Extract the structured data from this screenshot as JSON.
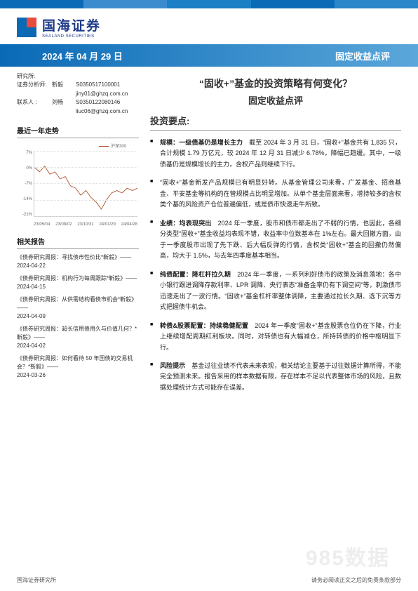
{
  "theme": {
    "brand_blue": "#0a6ab6",
    "brand_blue_dark": "#1e3a8a",
    "header_segments": [
      "#0a6ab6",
      "#3a8ccf",
      "#1a7fc4",
      "#0a6ab6",
      "#2a85c9"
    ],
    "band_gradient_from": "#0a6ab6",
    "band_gradient_to": "#5aa7da",
    "chart_line_color": "#b0522a",
    "text_color": "#333333",
    "grid_color": "#dddddd"
  },
  "brand": {
    "cn": "国海证券",
    "en": "SEALAND  SECURITIES"
  },
  "band": {
    "date": "2024 年 04 月 29 日",
    "category": "固定收益点评"
  },
  "meta": {
    "dept_label": "研究所:",
    "analysts": [
      {
        "role": "证券分析师:",
        "name": "靳毅",
        "id": "S0350517100001",
        "email": "jiny01@ghzq.com.cn"
      },
      {
        "role": "联系人 :",
        "name": "刘畅",
        "id": "S0350122080146",
        "email": "liuc06@ghzq.com.cn"
      }
    ]
  },
  "chart": {
    "section_title": "最近一年走势",
    "legend": "沪深300",
    "y_ticks": [
      "7%",
      "0%",
      "-7%",
      "-14%",
      "-21%"
    ],
    "y_range": [
      -21,
      7
    ],
    "x_ticks": [
      "23/05/04",
      "23/08/02",
      "23/10/31",
      "24/01/29",
      "24/04/28"
    ],
    "series": [
      {
        "x": 0.0,
        "y": 0
      },
      {
        "x": 0.05,
        "y": -2
      },
      {
        "x": 0.1,
        "y": 0.5
      },
      {
        "x": 0.15,
        "y": -3
      },
      {
        "x": 0.2,
        "y": -2
      },
      {
        "x": 0.25,
        "y": -5
      },
      {
        "x": 0.3,
        "y": -4
      },
      {
        "x": 0.35,
        "y": -8
      },
      {
        "x": 0.4,
        "y": -9
      },
      {
        "x": 0.45,
        "y": -12
      },
      {
        "x": 0.5,
        "y": -10
      },
      {
        "x": 0.55,
        "y": -13
      },
      {
        "x": 0.6,
        "y": -15
      },
      {
        "x": 0.65,
        "y": -18
      },
      {
        "x": 0.7,
        "y": -14
      },
      {
        "x": 0.75,
        "y": -11
      },
      {
        "x": 0.8,
        "y": -10
      },
      {
        "x": 0.85,
        "y": -11
      },
      {
        "x": 0.9,
        "y": -9
      },
      {
        "x": 0.95,
        "y": -10
      },
      {
        "x": 1.0,
        "y": -9
      }
    ]
  },
  "related": {
    "section_title": "相关报告",
    "items": [
      {
        "title": "《债券研究周报：寻找债市性价比*靳毅》——",
        "date": "2024-04-22"
      },
      {
        "title": "《债券研究周报：机构行为每周跟踪*靳毅》——",
        "date": "2024-04-15"
      },
      {
        "title": "《债券研究周报：从供需结构看债市机会*靳毅》——",
        "date": "2024-04-09"
      },
      {
        "title": "《债券研究周报：超长信用债用久与价值几何？*靳毅》——",
        "date": "2024-04-02"
      },
      {
        "title": "《债券研究周报：如何看待 50 年国债的交易机会？*靳毅》——",
        "date": "2024-03-26"
      }
    ]
  },
  "main": {
    "title": "“固收+”基金的投资策略有何变化？",
    "subtitle": "固定收益点评",
    "points_header": "投资要点:",
    "bullets": [
      {
        "lead": "规模：一级债基仍是增长主力",
        "body": "　截至 2024 年 3 月 31 日，“固收+”基金共有 1,835 只，合计规模 1.79 万亿元，较 2024 年 12 月 31 日减少 6.78%，降幅已趋缓。其中，一级债基仍是规模增长的主力，含权产品则继续下行。"
      },
      {
        "lead": "",
        "body": "“固收+”基金新发产品规模已有明显好转。从基金管理公司来看，广发基金、招商基金、平安基金等机构的在管规模占比明显增加。从单个基金层面来看，增持较多的含权类个基的风险资产仓位普遍偏低，或是债市快速走牛所致。"
      },
      {
        "lead": "业绩：均表现突出",
        "body": "　2024 年一季度，股市和债市都走出了不弱的行情，也因此，各细分类型“固收+”基金收益均表现不错，收益率中位数基本在 1%左右。最大回撤方面，由于一季度股市出现了先下跌、后大幅反弹的行情，含权类“固收+”基金的回撤仍然偏高，均大于 1.5%，与去年四季度基本相当。"
      },
      {
        "lead": "纯债配置：降杠杆拉久期",
        "body": "　2024 年一季度，一系列利好债市的政策及消息落地：各中小银行跟进调降存款利率、LPR 调降、央行表态“准备金率仍有下调空间”等，刺激债市迅速走出了一波行情。“固收+”基金杠杆率整体调降，主要通过拉长久期、选下沉等方式把握债牛机会。"
      },
      {
        "lead": "转债&股票配置：持续稳健配置",
        "body": "　2024 年一季度“固收+”基金股票仓位仍在下降，行业上继续增配周期红利板块。同时，对转债也有大幅减仓，所持转债的价格中枢明显下行。"
      },
      {
        "lead": "风险提示",
        "body": "　基金过往业绩不代表未来表现，相关结论主要基于过往数据计算所得，不能完全预测未来。报告采用的样本数据有限，存在样本不足以代表整体市场的风险，且数据处理统计方式可能存在误差。"
      }
    ]
  },
  "footer": {
    "left": "国海证券研究所",
    "right": "请务必阅读正文之后的免责条款部分"
  },
  "watermark": "985数据"
}
